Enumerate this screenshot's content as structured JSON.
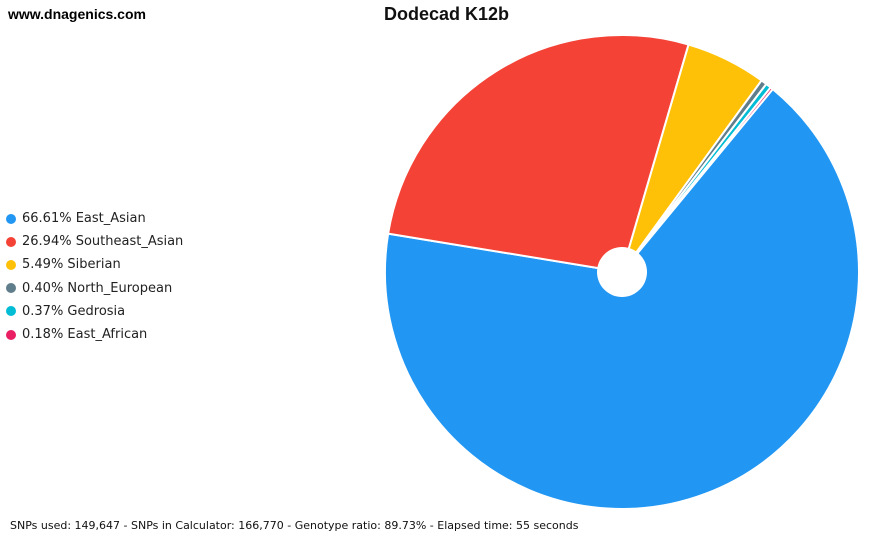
{
  "header": {
    "site": "www.dnagenics.com",
    "title": "Dodecad K12b"
  },
  "chart_data": {
    "type": "pie",
    "title": "Dodecad K12b",
    "legend_position": "left",
    "categories": [
      "East_Asian",
      "Southeast_Asian",
      "Siberian",
      "North_European",
      "Gedrosia",
      "East_African"
    ],
    "values": [
      66.61,
      26.94,
      5.49,
      0.4,
      0.37,
      0.18
    ],
    "colors": [
      "#2196F3",
      "#F44336",
      "#FFC107",
      "#607D8B",
      "#00BCD4",
      "#E91E63"
    ],
    "legend_labels": [
      "66.61% East_Asian",
      "26.94% Southeast_Asian",
      "5.49% Siberian",
      "0.40% North_European",
      "0.37% Gedrosia",
      "0.18% East_African"
    ]
  },
  "footer": {
    "stats": "SNPs used: 149,647 - SNPs in Calculator: 166,770 - Genotype ratio: 89.73% - Elapsed time: 55 seconds"
  }
}
